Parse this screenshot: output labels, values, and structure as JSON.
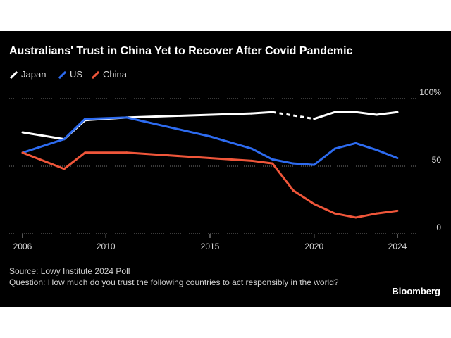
{
  "title": "Australians' Trust in China Yet to Recover After Covid Pandemic",
  "footer": {
    "source": "Source: Lowy Institute 2024 Poll",
    "question": "Question: How much do you trust the following countries to act responsibly in the world?",
    "brand": "Bloomberg"
  },
  "colors": {
    "background": "#000000",
    "Japan": "#ffffff",
    "US": "#2d6bf0",
    "China": "#f0563a"
  },
  "chart_data": {
    "type": "line",
    "title": "Australians' Trust in China Yet to Recover After Covid Pandemic",
    "xlabel": "",
    "ylabel": "",
    "xlim": [
      2006,
      2024
    ],
    "ylim": [
      0,
      100
    ],
    "x_ticks": [
      "2006",
      "2010",
      "2015",
      "2020",
      "2024"
    ],
    "y_ticks": [
      "100%",
      "50",
      "0"
    ],
    "gridlines": [
      100,
      50,
      0
    ],
    "legend": {
      "placement": "top-left",
      "entries": [
        "Japan",
        "US",
        "China"
      ]
    },
    "series": [
      {
        "name": "Japan",
        "x": [
          2006,
          2008,
          2009,
          2011,
          2017,
          2018,
          2020,
          2021,
          2022,
          2023,
          2024
        ],
        "y": [
          75,
          70,
          84,
          86,
          89,
          90,
          85,
          90,
          90,
          88,
          90
        ],
        "dashed_between": [
          2018,
          2020
        ]
      },
      {
        "name": "US",
        "x": [
          2006,
          2008,
          2009,
          2011,
          2013,
          2015,
          2017,
          2018,
          2019,
          2020,
          2021,
          2022,
          2023,
          2024
        ],
        "y": [
          60,
          70,
          85,
          86,
          79,
          72,
          63,
          55,
          52,
          51,
          63,
          67,
          62,
          56
        ]
      },
      {
        "name": "China",
        "x": [
          2006,
          2008,
          2009,
          2011,
          2013,
          2015,
          2017,
          2018,
          2019,
          2020,
          2021,
          2022,
          2023,
          2024
        ],
        "y": [
          60,
          48,
          60,
          60,
          58,
          56,
          54,
          52,
          32,
          22,
          15,
          12,
          15,
          17
        ]
      }
    ]
  }
}
